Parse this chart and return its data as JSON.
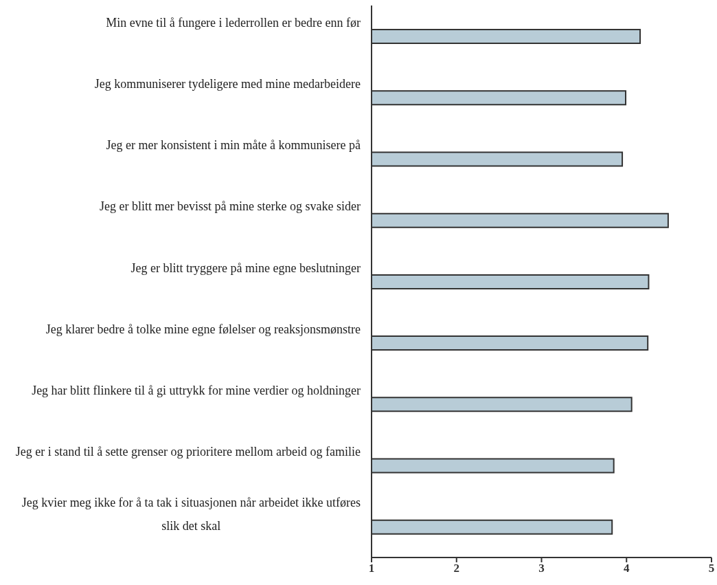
{
  "chart_data": {
    "type": "bar",
    "orientation": "horizontal",
    "categories": [
      "Min evne til å fungere i lederrollen er bedre enn før",
      "Jeg kommuniserer tydeligere med mine medarbeidere",
      "Jeg er mer konsistent i min måte å kommunisere på",
      "Jeg er blitt mer bevisst på mine sterke og svake sider",
      "Jeg er blitt tryggere på mine egne beslutninger",
      "Jeg klarer bedre å tolke mine egne følelser og reaksjonsmønstre",
      "Jeg har blitt flinkere til å gi uttrykk for mine verdier og holdninger",
      "Jeg er i stand til å sette grenser og prioritere mellom arbeid og familie",
      "Jeg kvier meg ikke for å ta tak i situasjonen når arbeidet ikke utføres slik det skal"
    ],
    "values": [
      4.16,
      3.99,
      3.95,
      4.49,
      4.26,
      4.25,
      4.06,
      3.85,
      3.83
    ],
    "color": "#b8ccd7",
    "xlim": [
      1,
      5
    ],
    "xticks": [
      1,
      2,
      3,
      4,
      5
    ],
    "grid": false,
    "legend": false
  }
}
